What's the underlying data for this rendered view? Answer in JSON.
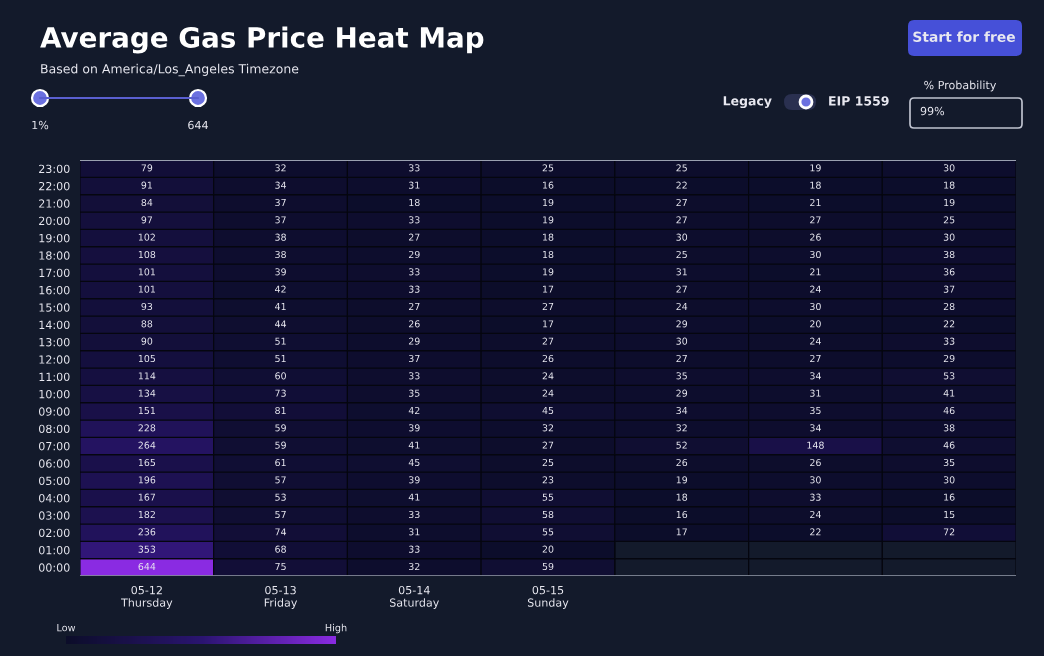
{
  "chart_data": {
    "type": "heatmap",
    "title": "Average Gas Price Heat Map",
    "subtitle": "Based on America/Los_Angeles Timezone",
    "annotations": [
      "1%",
      "644",
      "Legacy",
      "EIP 1559",
      "% Probability",
      "99%",
      "Start for free"
    ],
    "categories": [
      "05-12\nThursday",
      "05-13\nFriday",
      "05-14\nSaturday",
      "05-15\nSunday",
      null,
      null,
      null
    ],
    "y_categories": [
      "23:00",
      "22:00",
      "21:00",
      "20:00",
      "19:00",
      "18:00",
      "17:00",
      "16:00",
      "15:00",
      "14:00",
      "13:00",
      "12:00",
      "11:00",
      "10:00",
      "09:00",
      "08:00",
      "07:00",
      "06:00",
      "05:00",
      "04:00",
      "03:00",
      "02:00",
      "01:00",
      "00:00"
    ],
    "cells": [
      [
        79,
        32,
        33,
        25,
        25,
        19,
        30
      ],
      [
        91,
        34,
        31,
        16,
        22,
        18,
        18
      ],
      [
        84,
        37,
        18,
        19,
        27,
        21,
        19
      ],
      [
        97,
        37,
        33,
        19,
        27,
        27,
        25
      ],
      [
        102,
        38,
        27,
        18,
        30,
        26,
        30
      ],
      [
        108,
        38,
        29,
        18,
        25,
        30,
        38
      ],
      [
        101,
        39,
        33,
        19,
        31,
        21,
        36
      ],
      [
        101,
        42,
        33,
        17,
        27,
        24,
        37
      ],
      [
        93,
        41,
        27,
        27,
        24,
        30,
        28
      ],
      [
        88,
        44,
        26,
        17,
        29,
        20,
        22
      ],
      [
        90,
        51,
        29,
        27,
        30,
        24,
        33
      ],
      [
        105,
        51,
        37,
        26,
        27,
        27,
        29
      ],
      [
        114,
        60,
        33,
        24,
        35,
        34,
        53
      ],
      [
        134,
        73,
        35,
        24,
        29,
        31,
        41
      ],
      [
        151,
        81,
        42,
        45,
        34,
        35,
        46
      ],
      [
        228,
        59,
        39,
        32,
        32,
        34,
        38
      ],
      [
        264,
        59,
        41,
        27,
        52,
        148,
        46
      ],
      [
        165,
        61,
        45,
        25,
        26,
        26,
        35
      ],
      [
        196,
        57,
        39,
        23,
        19,
        30,
        30
      ],
      [
        167,
        53,
        41,
        55,
        18,
        33,
        16
      ],
      [
        182,
        57,
        33,
        58,
        16,
        24,
        15
      ],
      [
        236,
        74,
        31,
        55,
        17,
        22,
        72
      ],
      [
        353,
        68,
        33,
        20,
        null,
        null,
        null
      ],
      [
        644,
        75,
        32,
        59,
        null,
        null,
        null
      ]
    ],
    "data_labels": true,
    "clim": [
      15,
      644
    ],
    "cticks": [
      {
        "value": 15,
        "label": "Low"
      },
      {
        "value": 644,
        "label": "High"
      }
    ]
  }
}
